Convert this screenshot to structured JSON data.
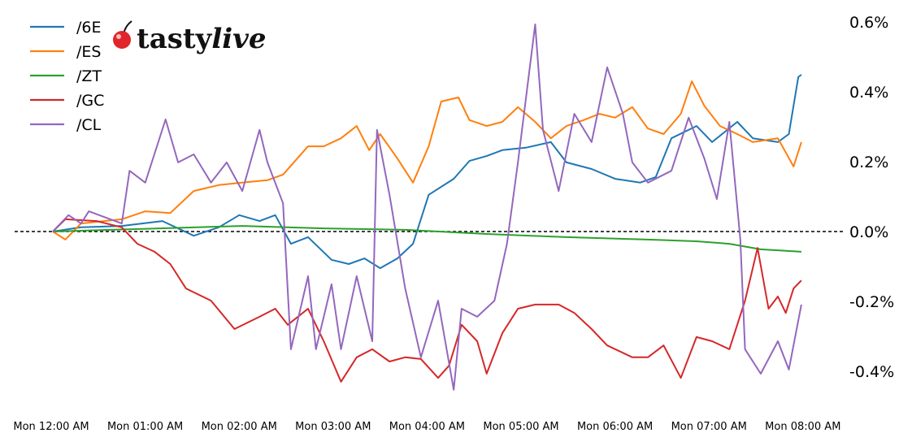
{
  "chart_data": {
    "type": "line",
    "title": "",
    "xlabel": "",
    "ylabel": "",
    "x_axis": {
      "type": "time",
      "range": [
        "00:00",
        "08:00"
      ],
      "tick_labels": [
        "Mon 12:00 AM",
        "Mon 01:00 AM",
        "Mon 02:00 AM",
        "Mon 03:00 AM",
        "Mon 04:00 AM",
        "Mon 05:00 AM",
        "Mon 06:00 AM",
        "Mon 07:00 AM",
        "Mon 08:00 AM"
      ]
    },
    "y_axis": {
      "position": "right",
      "ylim": [
        -0.5,
        0.6
      ],
      "ticks": [
        0.6,
        0.4,
        0.2,
        0.0,
        -0.2,
        -0.4
      ],
      "tick_labels": [
        "0.6%",
        "0.4%",
        "0.2%",
        "0.0%",
        "-0.2%",
        "-0.4%"
      ]
    },
    "grid": false,
    "reference_line": {
      "value": 0.0,
      "style": "dashed",
      "color": "#000000"
    },
    "legend": {
      "placement": "top-left"
    },
    "series": [
      {
        "name": "/6E",
        "color": "#1f77b4",
        "points": [
          [
            "00:00",
            0
          ],
          [
            "00:18",
            0.012
          ],
          [
            "00:44",
            0.016
          ],
          [
            "01:10",
            0.03
          ],
          [
            "01:30",
            -0.012
          ],
          [
            "01:46",
            0.012
          ],
          [
            "01:59",
            0.047
          ],
          [
            "02:12",
            0.03
          ],
          [
            "02:22",
            0.047
          ],
          [
            "02:32",
            -0.035
          ],
          [
            "02:43",
            -0.016
          ],
          [
            "02:58",
            -0.081
          ],
          [
            "03:09",
            -0.093
          ],
          [
            "03:19",
            -0.077
          ],
          [
            "03:29",
            -0.105
          ],
          [
            "03:40",
            -0.077
          ],
          [
            "03:50",
            -0.035
          ],
          [
            "04:00",
            0.105
          ],
          [
            "04:16",
            0.151
          ],
          [
            "04:26",
            0.202
          ],
          [
            "04:37",
            0.216
          ],
          [
            "04:47",
            0.233
          ],
          [
            "05:02",
            0.24
          ],
          [
            "05:18",
            0.256
          ],
          [
            "05:28",
            0.198
          ],
          [
            "05:44",
            0.179
          ],
          [
            "05:59",
            0.151
          ],
          [
            "06:15",
            0.14
          ],
          [
            "06:25",
            0.156
          ],
          [
            "06:35",
            0.267
          ],
          [
            "06:51",
            0.302
          ],
          [
            "07:01",
            0.256
          ],
          [
            "07:17",
            0.314
          ],
          [
            "07:27",
            0.267
          ],
          [
            "07:43",
            0.256
          ],
          [
            "07:50",
            0.279
          ],
          [
            "07:56",
            0.442
          ],
          [
            "07:58",
            0.449
          ]
        ]
      },
      {
        "name": "/ES",
        "color": "#ff7f0e",
        "points": [
          [
            "00:00",
            0
          ],
          [
            "00:08",
            -0.023
          ],
          [
            "00:18",
            0.023
          ],
          [
            "00:44",
            0.035
          ],
          [
            "00:59",
            0.058
          ],
          [
            "01:15",
            0.053
          ],
          [
            "01:30",
            0.116
          ],
          [
            "01:46",
            0.133
          ],
          [
            "02:01",
            0.14
          ],
          [
            "02:17",
            0.147
          ],
          [
            "02:27",
            0.163
          ],
          [
            "02:43",
            0.244
          ],
          [
            "02:53",
            0.244
          ],
          [
            "03:04",
            0.267
          ],
          [
            "03:14",
            0.302
          ],
          [
            "03:22",
            0.233
          ],
          [
            "03:29",
            0.279
          ],
          [
            "03:40",
            0.209
          ],
          [
            "03:50",
            0.14
          ],
          [
            "04:00",
            0.244
          ],
          [
            "04:08",
            0.372
          ],
          [
            "04:19",
            0.384
          ],
          [
            "04:26",
            0.319
          ],
          [
            "04:37",
            0.302
          ],
          [
            "04:47",
            0.314
          ],
          [
            "04:57",
            0.356
          ],
          [
            "05:08",
            0.314
          ],
          [
            "05:18",
            0.267
          ],
          [
            "05:28",
            0.302
          ],
          [
            "05:39",
            0.319
          ],
          [
            "05:49",
            0.337
          ],
          [
            "05:59",
            0.326
          ],
          [
            "06:10",
            0.356
          ],
          [
            "06:20",
            0.295
          ],
          [
            "06:30",
            0.279
          ],
          [
            "06:41",
            0.337
          ],
          [
            "06:48",
            0.43
          ],
          [
            "06:56",
            0.36
          ],
          [
            "07:06",
            0.302
          ],
          [
            "07:17",
            0.279
          ],
          [
            "07:27",
            0.256
          ],
          [
            "07:43",
            0.267
          ],
          [
            "07:53",
            0.186
          ],
          [
            "07:58",
            0.256
          ]
        ]
      },
      {
        "name": "/ZT",
        "color": "#2ca02c",
        "points": [
          [
            "00:00",
            0
          ],
          [
            "01:00",
            0.008
          ],
          [
            "02:01",
            0.016
          ],
          [
            "02:53",
            0.009
          ],
          [
            "03:45",
            0.005
          ],
          [
            "04:37",
            -0.007
          ],
          [
            "05:28",
            -0.016
          ],
          [
            "06:20",
            -0.023
          ],
          [
            "06:51",
            -0.028
          ],
          [
            "07:12",
            -0.035
          ],
          [
            "07:32",
            -0.051
          ],
          [
            "07:58",
            -0.058
          ]
        ]
      },
      {
        "name": "/GC",
        "color": "#d62728",
        "points": [
          [
            "00:00",
            0
          ],
          [
            "00:08",
            0.035
          ],
          [
            "00:28",
            0.03
          ],
          [
            "00:44",
            0.012
          ],
          [
            "00:54",
            -0.035
          ],
          [
            "01:05",
            -0.058
          ],
          [
            "01:15",
            -0.093
          ],
          [
            "01:25",
            -0.163
          ],
          [
            "01:41",
            -0.198
          ],
          [
            "01:56",
            -0.279
          ],
          [
            "02:12",
            -0.244
          ],
          [
            "02:22",
            -0.221
          ],
          [
            "02:30",
            -0.267
          ],
          [
            "02:43",
            -0.221
          ],
          [
            "02:53",
            -0.314
          ],
          [
            "03:04",
            -0.43
          ],
          [
            "03:14",
            -0.36
          ],
          [
            "03:24",
            -0.337
          ],
          [
            "03:35",
            -0.372
          ],
          [
            "03:45",
            -0.36
          ],
          [
            "03:55",
            -0.365
          ],
          [
            "04:06",
            -0.419
          ],
          [
            "04:13",
            -0.384
          ],
          [
            "04:21",
            -0.267
          ],
          [
            "04:31",
            -0.314
          ],
          [
            "04:37",
            -0.407
          ],
          [
            "04:47",
            -0.291
          ],
          [
            "04:57",
            -0.221
          ],
          [
            "05:08",
            -0.209
          ],
          [
            "05:23",
            -0.209
          ],
          [
            "05:33",
            -0.233
          ],
          [
            "05:44",
            -0.279
          ],
          [
            "05:54",
            -0.326
          ],
          [
            "06:10",
            -0.36
          ],
          [
            "06:20",
            -0.36
          ],
          [
            "06:30",
            -0.326
          ],
          [
            "06:41",
            -0.419
          ],
          [
            "06:51",
            -0.302
          ],
          [
            "07:01",
            -0.314
          ],
          [
            "07:12",
            -0.337
          ],
          [
            "07:22",
            -0.198
          ],
          [
            "07:30",
            -0.047
          ],
          [
            "07:37",
            -0.221
          ],
          [
            "07:43",
            -0.186
          ],
          [
            "07:48",
            -0.233
          ],
          [
            "07:53",
            -0.163
          ],
          [
            "07:58",
            -0.14
          ]
        ]
      },
      {
        "name": "/CL",
        "color": "#9467bd",
        "points": [
          [
            "00:00",
            0
          ],
          [
            "00:10",
            0.047
          ],
          [
            "00:18",
            0.023
          ],
          [
            "00:23",
            0.058
          ],
          [
            "00:44",
            0.023
          ],
          [
            "00:49",
            0.174
          ],
          [
            "00:59",
            0.14
          ],
          [
            "01:12",
            0.321
          ],
          [
            "01:20",
            0.198
          ],
          [
            "01:30",
            0.221
          ],
          [
            "01:41",
            0.14
          ],
          [
            "01:51",
            0.198
          ],
          [
            "02:01",
            0.116
          ],
          [
            "02:12",
            0.291
          ],
          [
            "02:17",
            0.198
          ],
          [
            "02:27",
            0.081
          ],
          [
            "02:32",
            -0.337
          ],
          [
            "02:43",
            -0.128
          ],
          [
            "02:48",
            -0.337
          ],
          [
            "02:58",
            -0.151
          ],
          [
            "03:04",
            -0.337
          ],
          [
            "03:14",
            -0.128
          ],
          [
            "03:24",
            -0.314
          ],
          [
            "03:27",
            0.291
          ],
          [
            "03:35",
            0.105
          ],
          [
            "03:45",
            -0.163
          ],
          [
            "03:55",
            -0.36
          ],
          [
            "04:06",
            -0.198
          ],
          [
            "04:16",
            -0.453
          ],
          [
            "04:21",
            -0.221
          ],
          [
            "04:31",
            -0.244
          ],
          [
            "04:42",
            -0.198
          ],
          [
            "04:50",
            -0.035
          ],
          [
            "04:57",
            0.198
          ],
          [
            "05:08",
            0.593
          ],
          [
            "05:13",
            0.291
          ],
          [
            "05:23",
            0.116
          ],
          [
            "05:33",
            0.337
          ],
          [
            "05:44",
            0.256
          ],
          [
            "05:54",
            0.47
          ],
          [
            "06:04",
            0.337
          ],
          [
            "06:10",
            0.198
          ],
          [
            "06:20",
            0.14
          ],
          [
            "06:35",
            0.174
          ],
          [
            "06:46",
            0.326
          ],
          [
            "06:56",
            0.209
          ],
          [
            "07:04",
            0.093
          ],
          [
            "07:12",
            0.314
          ],
          [
            "07:19",
            -0.023
          ],
          [
            "07:22",
            -0.337
          ],
          [
            "07:32",
            -0.407
          ],
          [
            "07:43",
            -0.314
          ],
          [
            "07:50",
            -0.395
          ],
          [
            "07:58",
            -0.209
          ]
        ]
      }
    ]
  },
  "logo": {
    "text_main": "tasty",
    "text_accent": "live"
  }
}
